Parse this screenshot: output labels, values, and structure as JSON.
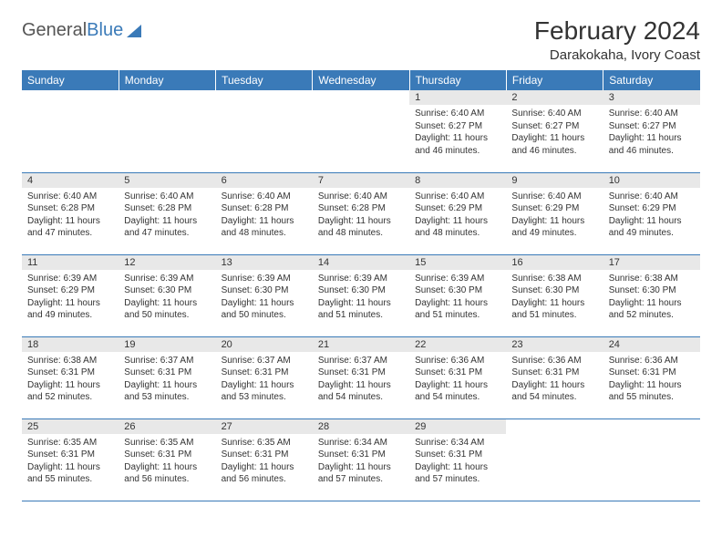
{
  "logo": {
    "word1": "General",
    "word2": "Blue"
  },
  "title": "February 2024",
  "location": "Darakokaha, Ivory Coast",
  "days": [
    "Sunday",
    "Monday",
    "Tuesday",
    "Wednesday",
    "Thursday",
    "Friday",
    "Saturday"
  ],
  "colors": {
    "header_bg": "#3a7ab8",
    "header_fg": "#ffffff",
    "daynum_bg": "#e8e8e8",
    "row_divider": "#3a7ab8",
    "text": "#333333",
    "logo_gray": "#555555",
    "logo_blue": "#3a7ab8",
    "page_bg": "#ffffff"
  },
  "fonts": {
    "month_size_pt": 21,
    "location_size_pt": 11,
    "weekday_size_pt": 9,
    "cell_size_pt": 7.5
  },
  "grid": {
    "first_weekday_index": 4,
    "rows": 5,
    "cols": 7
  },
  "cells": [
    {
      "n": 1,
      "sunrise": "6:40 AM",
      "sunset": "6:27 PM",
      "daylight": "11 hours and 46 minutes."
    },
    {
      "n": 2,
      "sunrise": "6:40 AM",
      "sunset": "6:27 PM",
      "daylight": "11 hours and 46 minutes."
    },
    {
      "n": 3,
      "sunrise": "6:40 AM",
      "sunset": "6:27 PM",
      "daylight": "11 hours and 46 minutes."
    },
    {
      "n": 4,
      "sunrise": "6:40 AM",
      "sunset": "6:28 PM",
      "daylight": "11 hours and 47 minutes."
    },
    {
      "n": 5,
      "sunrise": "6:40 AM",
      "sunset": "6:28 PM",
      "daylight": "11 hours and 47 minutes."
    },
    {
      "n": 6,
      "sunrise": "6:40 AM",
      "sunset": "6:28 PM",
      "daylight": "11 hours and 48 minutes."
    },
    {
      "n": 7,
      "sunrise": "6:40 AM",
      "sunset": "6:28 PM",
      "daylight": "11 hours and 48 minutes."
    },
    {
      "n": 8,
      "sunrise": "6:40 AM",
      "sunset": "6:29 PM",
      "daylight": "11 hours and 48 minutes."
    },
    {
      "n": 9,
      "sunrise": "6:40 AM",
      "sunset": "6:29 PM",
      "daylight": "11 hours and 49 minutes."
    },
    {
      "n": 10,
      "sunrise": "6:40 AM",
      "sunset": "6:29 PM",
      "daylight": "11 hours and 49 minutes."
    },
    {
      "n": 11,
      "sunrise": "6:39 AM",
      "sunset": "6:29 PM",
      "daylight": "11 hours and 49 minutes."
    },
    {
      "n": 12,
      "sunrise": "6:39 AM",
      "sunset": "6:30 PM",
      "daylight": "11 hours and 50 minutes."
    },
    {
      "n": 13,
      "sunrise": "6:39 AM",
      "sunset": "6:30 PM",
      "daylight": "11 hours and 50 minutes."
    },
    {
      "n": 14,
      "sunrise": "6:39 AM",
      "sunset": "6:30 PM",
      "daylight": "11 hours and 51 minutes."
    },
    {
      "n": 15,
      "sunrise": "6:39 AM",
      "sunset": "6:30 PM",
      "daylight": "11 hours and 51 minutes."
    },
    {
      "n": 16,
      "sunrise": "6:38 AM",
      "sunset": "6:30 PM",
      "daylight": "11 hours and 51 minutes."
    },
    {
      "n": 17,
      "sunrise": "6:38 AM",
      "sunset": "6:30 PM",
      "daylight": "11 hours and 52 minutes."
    },
    {
      "n": 18,
      "sunrise": "6:38 AM",
      "sunset": "6:31 PM",
      "daylight": "11 hours and 52 minutes."
    },
    {
      "n": 19,
      "sunrise": "6:37 AM",
      "sunset": "6:31 PM",
      "daylight": "11 hours and 53 minutes."
    },
    {
      "n": 20,
      "sunrise": "6:37 AM",
      "sunset": "6:31 PM",
      "daylight": "11 hours and 53 minutes."
    },
    {
      "n": 21,
      "sunrise": "6:37 AM",
      "sunset": "6:31 PM",
      "daylight": "11 hours and 54 minutes."
    },
    {
      "n": 22,
      "sunrise": "6:36 AM",
      "sunset": "6:31 PM",
      "daylight": "11 hours and 54 minutes."
    },
    {
      "n": 23,
      "sunrise": "6:36 AM",
      "sunset": "6:31 PM",
      "daylight": "11 hours and 54 minutes."
    },
    {
      "n": 24,
      "sunrise": "6:36 AM",
      "sunset": "6:31 PM",
      "daylight": "11 hours and 55 minutes."
    },
    {
      "n": 25,
      "sunrise": "6:35 AM",
      "sunset": "6:31 PM",
      "daylight": "11 hours and 55 minutes."
    },
    {
      "n": 26,
      "sunrise": "6:35 AM",
      "sunset": "6:31 PM",
      "daylight": "11 hours and 56 minutes."
    },
    {
      "n": 27,
      "sunrise": "6:35 AM",
      "sunset": "6:31 PM",
      "daylight": "11 hours and 56 minutes."
    },
    {
      "n": 28,
      "sunrise": "6:34 AM",
      "sunset": "6:31 PM",
      "daylight": "11 hours and 57 minutes."
    },
    {
      "n": 29,
      "sunrise": "6:34 AM",
      "sunset": "6:31 PM",
      "daylight": "11 hours and 57 minutes."
    }
  ],
  "labels": {
    "sunrise": "Sunrise:",
    "sunset": "Sunset:",
    "daylight": "Daylight:"
  }
}
